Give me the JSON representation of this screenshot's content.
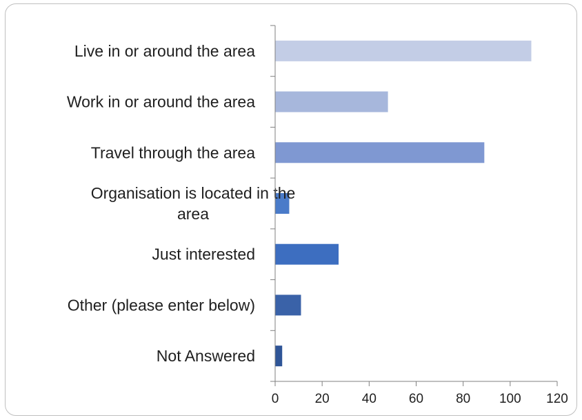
{
  "chart_data": {
    "type": "bar",
    "orientation": "horizontal",
    "categories": [
      "Live in or around the area",
      "Work in or around the area",
      "Travel through the area",
      "Organisation is located in the area",
      "Just interested",
      "Other (please enter below)",
      "Not Answered"
    ],
    "values": [
      109,
      48,
      89,
      6,
      27,
      11,
      3
    ],
    "bar_colors": [
      "#c3cde6",
      "#a7b7dc",
      "#7f98d2",
      "#4a7bc9",
      "#3d6ec0",
      "#3a62a8",
      "#2f5597"
    ],
    "xlim": [
      0,
      120
    ],
    "xticks": [
      "0",
      "20",
      "40",
      "60",
      "80",
      "100",
      "120"
    ],
    "title": "",
    "xlabel": "",
    "ylabel": "",
    "grid": false,
    "legend": "none"
  }
}
